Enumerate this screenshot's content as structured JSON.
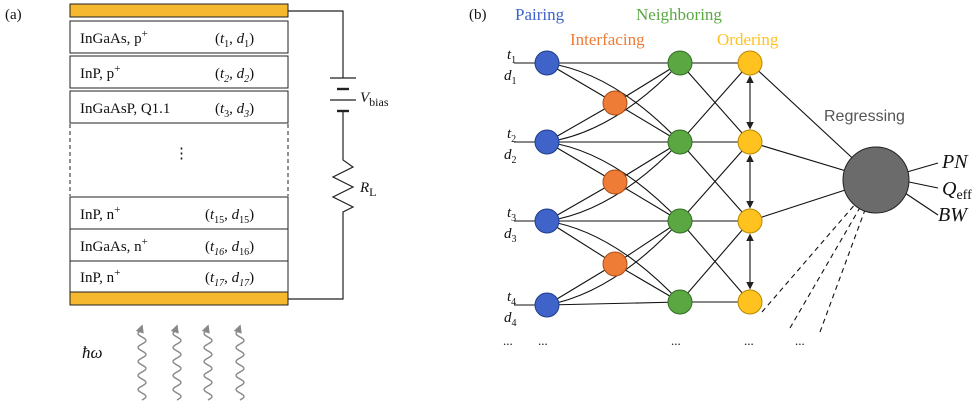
{
  "panel_a": {
    "label": "(a)",
    "layers": [
      {
        "name": "InGaAs, p",
        "sup": "+",
        "t": "t",
        "ti": "1",
        "d": "d",
        "di": "1"
      },
      {
        "name": "InP, p",
        "sup": "+",
        "t": "t",
        "ti": "2",
        "d": "d",
        "di": "2"
      },
      {
        "name": "InGaAsP, Q1.1",
        "sup": "",
        "t": "t",
        "ti": "3",
        "d": "d",
        "di": "3"
      },
      {
        "name": "InP, n",
        "sup": "+",
        "t": "t",
        "ti": "15",
        "d": "d",
        "di": "15"
      },
      {
        "name": "InGaAs, n",
        "sup": "+",
        "t": "t",
        "ti": "16",
        "d": "d",
        "di": "16"
      },
      {
        "name": "InP, n",
        "sup": "+",
        "t": "t",
        "ti": "17",
        "d": "d",
        "di": "17"
      }
    ],
    "ellipsis": "⋮",
    "vbias_main": "V",
    "vbias_sub": "bias",
    "rl_main": "R",
    "rl_sub": "L",
    "photon": "ħω",
    "colors": {
      "contact": "#F5B82E",
      "wave": "#888888"
    }
  },
  "panel_b": {
    "label": "(b)",
    "headers": {
      "pairing": "Pairing",
      "interfacing": "Interfacing",
      "neighboring": "Neighboring",
      "ordering": "Ordering"
    },
    "regressing": "Regressing",
    "inputs": [
      {
        "t": "t",
        "ti": "1",
        "d": "d",
        "di": "1"
      },
      {
        "t": "t",
        "ti": "2",
        "d": "d",
        "di": "2"
      },
      {
        "t": "t",
        "ti": "3",
        "d": "d",
        "di": "3"
      },
      {
        "t": "t",
        "ti": "4",
        "d": "d",
        "di": "4"
      }
    ],
    "outputs": {
      "pn": "PN",
      "q_main": "Q",
      "q_sub": "eff",
      "bw": "BW"
    },
    "dots": "...",
    "colors": {
      "pairing": "#3F63C8",
      "interfacing": "#EE7B36",
      "neighboring": "#5BA843",
      "ordering": "#FFC21E",
      "regressing": "#6B6B6B"
    }
  }
}
